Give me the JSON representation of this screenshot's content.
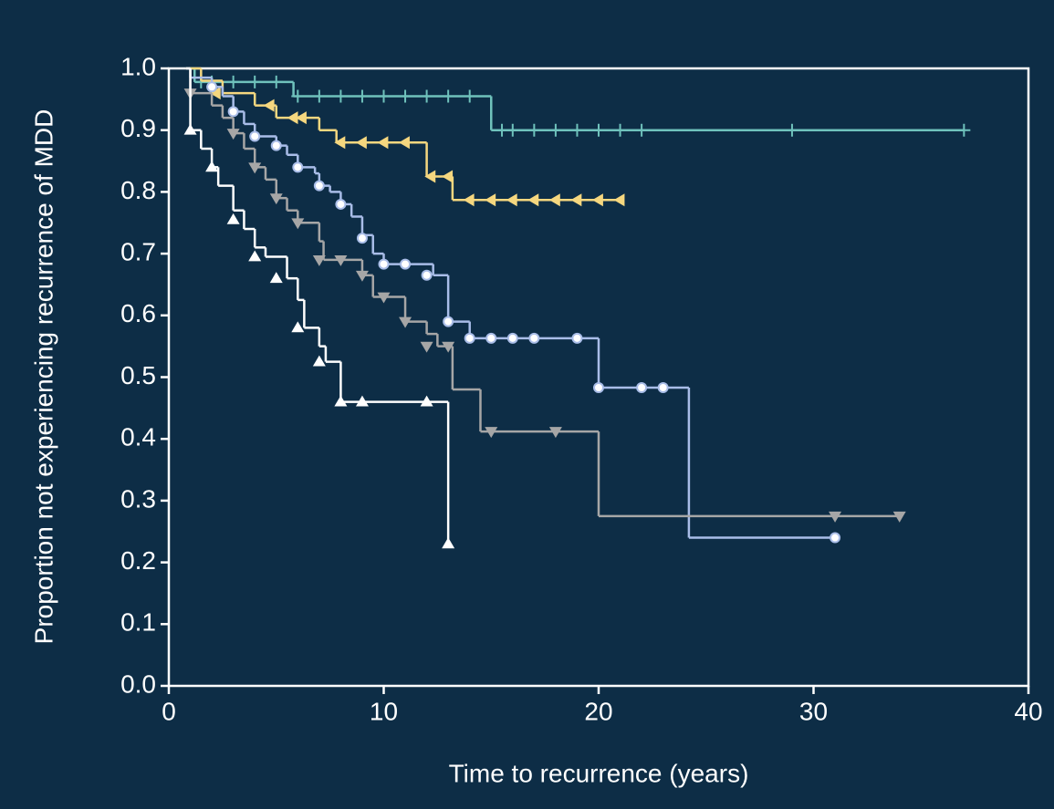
{
  "chart_data": {
    "type": "step",
    "xlabel": "Time to recurrence (years)",
    "ylabel": "Proportion not experiencing recurrence of MDD",
    "xlim": [
      0,
      40
    ],
    "xticks": [
      0,
      10,
      20,
      30,
      40
    ],
    "ylim": [
      0,
      1
    ],
    "yticks": [
      {
        "value": 0,
        "label": "0.0"
      },
      0.1,
      0.2,
      0.3,
      0.4,
      0.5,
      0.6,
      0.7,
      0.8,
      0.9,
      {
        "value": 1,
        "label": "1.0"
      }
    ],
    "series": [
      {
        "color": "#6fc2bc",
        "marker": "plus",
        "x": [
          0.8,
          1.2,
          5.8,
          15,
          37
        ],
        "values": [
          1.0,
          0.978,
          0.955,
          0.9,
          0.9
        ],
        "censor_x": [
          1.5,
          2,
          3,
          4,
          5,
          6,
          7,
          8,
          9,
          10,
          11,
          12,
          13,
          14,
          15.5,
          16,
          17,
          18,
          19,
          20,
          21,
          22,
          29,
          37
        ],
        "censor_values": [
          0.978,
          0.978,
          0.978,
          0.978,
          0.978,
          0.955,
          0.955,
          0.955,
          0.955,
          0.955,
          0.955,
          0.955,
          0.955,
          0.955,
          0.9,
          0.9,
          0.9,
          0.9,
          0.9,
          0.9,
          0.9,
          0.9,
          0.9,
          0.9
        ]
      },
      {
        "color": "#f5d77f",
        "marker": "left-triangle",
        "x": [
          0.8,
          1.5,
          2.5,
          4,
          5,
          7,
          7.8,
          12,
          13.2,
          21
        ],
        "values": [
          1.0,
          0.98,
          0.96,
          0.94,
          0.92,
          0.9,
          0.88,
          0.825,
          0.787,
          0.787
        ],
        "censor_x": [
          2.2,
          4.7,
          5.8,
          6.2,
          8,
          9,
          10,
          11,
          12.2,
          13,
          14,
          15,
          16,
          17,
          18,
          19,
          20,
          21
        ],
        "censor_values": [
          0.96,
          0.94,
          0.92,
          0.92,
          0.88,
          0.88,
          0.88,
          0.88,
          0.825,
          0.825,
          0.787,
          0.787,
          0.787,
          0.787,
          0.787,
          0.787,
          0.787,
          0.787
        ]
      },
      {
        "color": "#a9bde8",
        "marker": "circle",
        "x": [
          0.8,
          1,
          2,
          2.5,
          3,
          3.5,
          4,
          5,
          5.5,
          6,
          6.8,
          7,
          7.5,
          8,
          8.5,
          9,
          9.5,
          10,
          12.3,
          13,
          14,
          20,
          24.2,
          31
        ],
        "values": [
          1.0,
          0.985,
          0.97,
          0.955,
          0.93,
          0.91,
          0.89,
          0.875,
          0.86,
          0.84,
          0.83,
          0.81,
          0.8,
          0.78,
          0.76,
          0.73,
          0.7,
          0.683,
          0.665,
          0.59,
          0.563,
          0.483,
          0.24,
          0.24
        ],
        "censor_x": [
          2,
          3,
          4,
          5,
          6,
          7,
          8,
          9,
          10,
          11,
          12,
          13,
          14,
          15,
          16,
          17,
          19,
          20,
          22,
          23,
          31
        ],
        "censor_values": [
          0.97,
          0.93,
          0.89,
          0.875,
          0.84,
          0.81,
          0.78,
          0.725,
          0.683,
          0.683,
          0.665,
          0.59,
          0.563,
          0.563,
          0.563,
          0.563,
          0.563,
          0.483,
          0.483,
          0.483,
          0.24
        ]
      },
      {
        "color": "#a6a6a6",
        "marker": "down-triangle",
        "x": [
          0.8,
          1,
          2,
          2.5,
          3,
          3.5,
          4,
          4.5,
          5,
          5.5,
          6,
          7,
          7.2,
          9,
          9.5,
          11,
          12,
          12.5,
          13.2,
          14.5,
          20,
          34
        ],
        "values": [
          1.0,
          0.96,
          0.94,
          0.92,
          0.895,
          0.87,
          0.84,
          0.82,
          0.79,
          0.77,
          0.75,
          0.72,
          0.69,
          0.665,
          0.63,
          0.59,
          0.57,
          0.55,
          0.48,
          0.412,
          0.275,
          0.275
        ],
        "censor_x": [
          1,
          3,
          4,
          5,
          6,
          7,
          8,
          9,
          10,
          11,
          12,
          13,
          15,
          18,
          31,
          34
        ],
        "censor_values": [
          0.96,
          0.895,
          0.84,
          0.79,
          0.75,
          0.69,
          0.69,
          0.665,
          0.63,
          0.59,
          0.55,
          0.55,
          0.412,
          0.412,
          0.275,
          0.275
        ]
      },
      {
        "color": "#ffffff",
        "marker": "up-triangle",
        "x": [
          0.8,
          1,
          1.5,
          2,
          2.3,
          3,
          3.5,
          4,
          4.5,
          5.5,
          6,
          6.3,
          7,
          7.3,
          8,
          13,
          13
        ],
        "values": [
          1.0,
          0.9,
          0.87,
          0.84,
          0.81,
          0.77,
          0.74,
          0.71,
          0.695,
          0.66,
          0.625,
          0.58,
          0.55,
          0.525,
          0.46,
          0.23,
          0.23
        ],
        "censor_x": [
          1,
          2,
          3,
          4,
          5,
          6,
          7,
          8,
          9,
          12,
          13
        ],
        "censor_values": [
          0.9,
          0.84,
          0.755,
          0.695,
          0.66,
          0.58,
          0.525,
          0.46,
          0.46,
          0.46,
          0.23
        ]
      }
    ]
  }
}
